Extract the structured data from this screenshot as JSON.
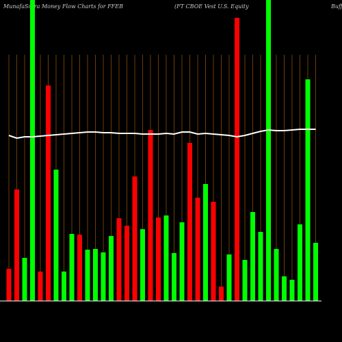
{
  "chart_data": {
    "type": "bar",
    "title": "MunafaSutra  Money Flow  Charts for FFEB",
    "subtitle": "(FT CBOE Vest U.S. Equity",
    "title_right": "Buff",
    "categories": [
      null,
      null,
      null,
      null,
      null,
      null,
      null,
      null,
      null,
      null,
      null,
      null,
      null,
      null,
      null,
      null,
      null,
      null,
      null,
      null,
      null,
      null,
      null,
      null,
      null,
      null,
      null,
      null,
      null,
      null,
      null,
      null,
      null,
      null,
      null,
      null,
      null,
      null,
      null,
      null
    ],
    "series": [
      {
        "name": "Money flow",
        "colors": [
          "#ff0000",
          "#ff0000",
          "#00ff00",
          "#00ff00",
          "#ff0000",
          "#ff0000",
          "#00ff00",
          "#00ff00",
          "#00ff00",
          "#ff0000",
          "#00ff00",
          "#00ff00",
          "#00ff00",
          "#00ff00",
          "#ff0000",
          "#ff0000",
          "#ff0000",
          "#00ff00",
          "#ff0000",
          "#ff0000",
          "#00ff00",
          "#00ff00",
          "#00ff00",
          "#ff0000",
          "#ff0000",
          "#00ff00",
          "#ff0000",
          "#ff0000",
          "#00ff00",
          "#ff0000",
          "#00ff00",
          "#00ff00",
          "#00ff00",
          "#00ff00",
          "#00ff00",
          "#00ff00",
          "#00ff00",
          "#00ff00",
          "#00ff00",
          "#00ff00"
        ],
        "values": [
          47,
          163,
          63,
          460,
          43,
          315,
          192,
          43,
          98,
          97,
          75,
          76,
          71,
          95,
          121,
          110,
          182,
          105,
          250,
          122,
          125,
          70,
          115,
          231,
          151,
          171,
          145,
          21,
          68,
          414,
          60,
          130,
          101,
          460,
          76,
          36,
          31,
          112,
          324,
          85
        ]
      },
      {
        "name": "Price",
        "color": "#ffffff",
        "values": [
          242,
          238,
          240,
          240,
          241,
          242,
          243,
          244,
          245,
          246,
          247,
          247,
          246,
          246,
          245,
          245,
          245,
          244,
          244,
          244,
          245,
          244,
          247,
          247,
          244,
          245,
          244,
          243,
          242,
          240,
          242,
          245,
          248,
          250,
          249,
          249,
          250,
          251,
          251,
          251
        ]
      }
    ],
    "ylim": [
      0,
      440
    ]
  }
}
